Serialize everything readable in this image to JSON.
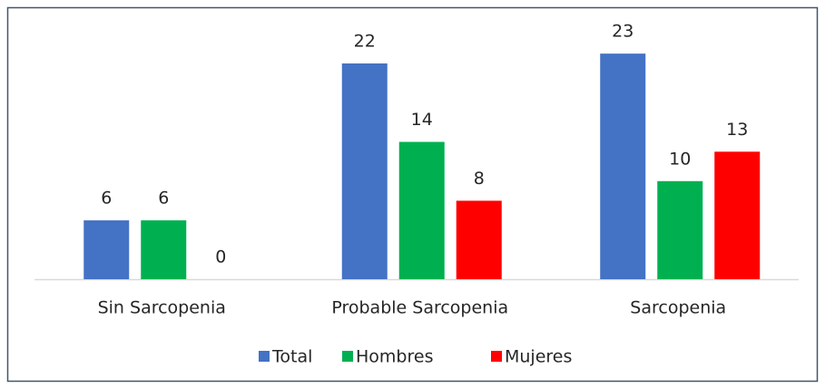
{
  "chart_data": {
    "type": "bar",
    "categories": [
      "Sin Sarcopenia",
      "Probable Sarcopenia",
      "Sarcopenia"
    ],
    "series": [
      {
        "name": "Total",
        "color": "#4472c4",
        "values": [
          6,
          22,
          23
        ]
      },
      {
        "name": "Hombres",
        "color": "#00b050",
        "values": [
          6,
          14,
          10
        ]
      },
      {
        "name": "Mujeres",
        "color": "#ff0000",
        "values": [
          0,
          8,
          13
        ]
      }
    ],
    "legend": "bottom"
  }
}
